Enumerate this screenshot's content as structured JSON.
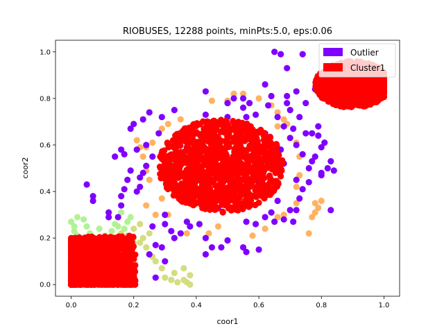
{
  "chart_data": {
    "type": "scatter",
    "title": "RIOBUSES, 12288 points, minPts:5.0, eps:0.06",
    "xlabel": "coor1",
    "ylabel": "coor2",
    "xlim": [
      -0.05,
      1.05
    ],
    "ylim": [
      -0.05,
      1.05
    ],
    "x_ticks": [
      0.0,
      0.2,
      0.4,
      0.6,
      0.8,
      1.0
    ],
    "x_tick_labels": [
      "0.0",
      "0.2",
      "0.4",
      "0.6",
      "0.8",
      "1.0"
    ],
    "y_ticks": [
      0.0,
      0.2,
      0.4,
      0.6,
      0.8,
      1.0
    ],
    "y_tick_labels": [
      "0.0",
      "0.2",
      "0.4",
      "0.6",
      "0.8",
      "1.0"
    ],
    "grid": false,
    "legend_position": "top-right",
    "legend": [
      {
        "label": "Outlier",
        "color": "#7f00ff"
      },
      {
        "label": "Cluster1",
        "color": "#ff0000"
      }
    ],
    "colors": {
      "outlier": "#7f00ff",
      "cluster1": "#ff0000",
      "cluster_orange": "#ffb360",
      "cluster_yellowgreen": "#d4dd80",
      "cluster_green": "#b2f296"
    },
    "series": [
      {
        "name": "Cluster1",
        "color": "#ff0000",
        "regions": [
          {
            "cx": 0.08,
            "cy": 0.09,
            "rx": 0.09,
            "ry": 0.1,
            "shape": "box",
            "density": "dense"
          },
          {
            "cx": 0.48,
            "cy": 0.51,
            "rx": 0.2,
            "ry": 0.2,
            "shape": "disc",
            "density": "dense"
          },
          {
            "cx": 0.9,
            "cy": 0.86,
            "rx": 0.12,
            "ry": 0.1,
            "shape": "disc",
            "density": "dense"
          }
        ]
      },
      {
        "name": "Outlier",
        "color": "#7f00ff",
        "points": [
          [
            0.65,
            1.0
          ],
          [
            0.67,
            0.99
          ],
          [
            0.62,
            0.86
          ],
          [
            0.64,
            0.81
          ],
          [
            0.43,
            0.83
          ],
          [
            0.33,
            0.75
          ],
          [
            0.29,
            0.72
          ],
          [
            0.25,
            0.74
          ],
          [
            0.23,
            0.71
          ],
          [
            0.2,
            0.69
          ],
          [
            0.28,
            0.65
          ],
          [
            0.19,
            0.67
          ],
          [
            0.17,
            0.56
          ],
          [
            0.16,
            0.58
          ],
          [
            0.14,
            0.55
          ],
          [
            0.18,
            0.45
          ],
          [
            0.17,
            0.41
          ],
          [
            0.16,
            0.38
          ],
          [
            0.21,
            0.4
          ],
          [
            0.16,
            0.34
          ],
          [
            0.07,
            0.38
          ],
          [
            0.07,
            0.36
          ],
          [
            0.05,
            0.43
          ],
          [
            0.12,
            0.31
          ],
          [
            0.12,
            0.29
          ],
          [
            0.15,
            0.29
          ],
          [
            0.27,
            0.17
          ],
          [
            0.25,
            0.13
          ],
          [
            0.3,
            0.1
          ],
          [
            0.27,
            0.03
          ],
          [
            0.32,
            0.23
          ],
          [
            0.29,
            0.16
          ],
          [
            0.33,
            0.2
          ],
          [
            0.3,
            0.3
          ],
          [
            0.43,
            0.2
          ],
          [
            0.45,
            0.16
          ],
          [
            0.43,
            0.13
          ],
          [
            0.48,
            0.16
          ],
          [
            0.5,
            0.19
          ],
          [
            0.55,
            0.16
          ],
          [
            0.56,
            0.14
          ],
          [
            0.6,
            0.15
          ],
          [
            0.59,
            0.26
          ],
          [
            0.62,
            0.29
          ],
          [
            0.64,
            0.31
          ],
          [
            0.68,
            0.28
          ],
          [
            0.71,
            0.27
          ],
          [
            0.72,
            0.32
          ],
          [
            0.73,
            0.37
          ],
          [
            0.74,
            0.41
          ],
          [
            0.8,
            0.47
          ],
          [
            0.8,
            0.48
          ],
          [
            0.82,
            0.5
          ],
          [
            0.83,
            0.53
          ],
          [
            0.84,
            0.49
          ],
          [
            0.77,
            0.53
          ],
          [
            0.74,
            0.56
          ],
          [
            0.72,
            0.6
          ],
          [
            0.7,
            0.63
          ],
          [
            0.71,
            0.67
          ],
          [
            0.73,
            0.72
          ],
          [
            0.7,
            0.75
          ],
          [
            0.69,
            0.78
          ],
          [
            0.63,
            0.77
          ],
          [
            0.59,
            0.73
          ],
          [
            0.56,
            0.72
          ],
          [
            0.55,
            0.76
          ],
          [
            0.57,
            0.78
          ],
          [
            0.52,
            0.8
          ],
          [
            0.5,
            0.78
          ],
          [
            0.55,
            0.8
          ],
          [
            0.77,
            0.65
          ],
          [
            0.75,
            0.65
          ],
          [
            0.79,
            0.64
          ],
          [
            0.81,
            0.61
          ],
          [
            0.83,
            0.32
          ],
          [
            0.69,
            0.81
          ],
          [
            0.72,
            0.83
          ],
          [
            0.75,
            0.78
          ],
          [
            0.78,
            0.84
          ],
          [
            0.74,
            0.99
          ],
          [
            0.69,
            0.93
          ],
          [
            0.37,
            0.59
          ],
          [
            0.38,
            0.54
          ],
          [
            0.4,
            0.65
          ],
          [
            0.26,
            0.55
          ],
          [
            0.24,
            0.51
          ],
          [
            0.24,
            0.6
          ],
          [
            0.21,
            0.58
          ],
          [
            0.34,
            0.63
          ],
          [
            0.19,
            0.49
          ],
          [
            0.22,
            0.46
          ],
          [
            0.23,
            0.48
          ],
          [
            0.22,
            0.42
          ],
          [
            0.37,
            0.27
          ],
          [
            0.38,
            0.25
          ],
          [
            0.41,
            0.26
          ],
          [
            0.35,
            0.22
          ],
          [
            0.3,
            0.26
          ],
          [
            0.26,
            0.25
          ],
          [
            0.56,
            0.27
          ],
          [
            0.65,
            0.27
          ],
          [
            0.7,
            0.32
          ],
          [
            0.66,
            0.36
          ],
          [
            0.72,
            0.45
          ],
          [
            0.76,
            0.44
          ],
          [
            0.76,
            0.5
          ],
          [
            0.78,
            0.55
          ],
          [
            0.8,
            0.59
          ],
          [
            0.79,
            0.68
          ],
          [
            0.68,
            0.68
          ],
          [
            0.35,
            0.56
          ],
          [
            0.46,
            0.69
          ],
          [
            0.5,
            0.72
          ],
          [
            0.43,
            0.73
          ],
          [
            0.47,
            0.33
          ],
          [
            0.39,
            0.36
          ],
          [
            0.36,
            0.4
          ],
          [
            0.57,
            0.34
          ],
          [
            0.61,
            0.39
          ],
          [
            0.6,
            0.43
          ],
          [
            0.68,
            0.52
          ],
          [
            0.67,
            0.58
          ],
          [
            0.62,
            0.65
          ],
          [
            0.66,
            0.72
          ]
        ]
      },
      {
        "name": "",
        "color": "#ffb360",
        "points": [
          [
            0.24,
            0.34
          ],
          [
            0.27,
            0.3
          ],
          [
            0.31,
            0.3
          ],
          [
            0.29,
            0.37
          ],
          [
            0.25,
            0.45
          ],
          [
            0.24,
            0.49
          ],
          [
            0.23,
            0.55
          ],
          [
            0.24,
            0.59
          ],
          [
            0.26,
            0.61
          ],
          [
            0.29,
            0.67
          ],
          [
            0.31,
            0.69
          ],
          [
            0.35,
            0.71
          ],
          [
            0.45,
            0.79
          ],
          [
            0.5,
            0.79
          ],
          [
            0.52,
            0.82
          ],
          [
            0.55,
            0.82
          ],
          [
            0.6,
            0.8
          ],
          [
            0.64,
            0.77
          ],
          [
            0.66,
            0.74
          ],
          [
            0.68,
            0.71
          ],
          [
            0.69,
            0.69
          ],
          [
            0.66,
            0.68
          ],
          [
            0.72,
            0.61
          ],
          [
            0.73,
            0.55
          ],
          [
            0.73,
            0.47
          ],
          [
            0.72,
            0.42
          ],
          [
            0.72,
            0.35
          ],
          [
            0.7,
            0.32
          ],
          [
            0.68,
            0.3
          ],
          [
            0.66,
            0.29
          ],
          [
            0.62,
            0.24
          ],
          [
            0.58,
            0.21
          ],
          [
            0.78,
            0.31
          ],
          [
            0.79,
            0.33
          ],
          [
            0.78,
            0.35
          ],
          [
            0.77,
            0.29
          ],
          [
            0.76,
            0.22
          ],
          [
            0.8,
            0.36
          ],
          [
            0.22,
            0.59
          ],
          [
            0.21,
            0.62
          ],
          [
            0.37,
            0.22
          ],
          [
            0.44,
            0.22
          ],
          [
            0.47,
            0.25
          ],
          [
            0.31,
            0.54
          ]
        ]
      },
      {
        "name": "",
        "color": "#d4dd80",
        "points": [
          [
            0.23,
            0.2
          ],
          [
            0.22,
            0.18
          ],
          [
            0.2,
            0.18
          ],
          [
            0.24,
            0.16
          ],
          [
            0.26,
            0.12
          ],
          [
            0.27,
            0.1
          ],
          [
            0.29,
            0.07
          ],
          [
            0.3,
            0.03
          ],
          [
            0.34,
            0.01
          ],
          [
            0.36,
            0.02
          ],
          [
            0.37,
            0.01
          ],
          [
            0.38,
            0.0
          ],
          [
            0.36,
            0.07
          ],
          [
            0.38,
            0.04
          ],
          [
            0.18,
            0.21
          ],
          [
            0.16,
            0.22
          ],
          [
            0.2,
            0.24
          ],
          [
            0.22,
            0.26
          ],
          [
            0.25,
            0.22
          ],
          [
            0.33,
            0.05
          ],
          [
            0.32,
            0.02
          ]
        ]
      },
      {
        "name": "",
        "color": "#b2f296",
        "points": [
          [
            0.0,
            0.27
          ],
          [
            0.02,
            0.29
          ],
          [
            0.04,
            0.28
          ],
          [
            0.05,
            0.25
          ],
          [
            0.06,
            0.22
          ],
          [
            0.09,
            0.24
          ],
          [
            0.11,
            0.21
          ],
          [
            0.13,
            0.23
          ],
          [
            0.15,
            0.25
          ],
          [
            0.17,
            0.24
          ],
          [
            0.18,
            0.27
          ],
          [
            0.19,
            0.29
          ],
          [
            0.16,
            0.31
          ],
          [
            0.01,
            0.23
          ],
          [
            0.02,
            0.21
          ],
          [
            0.14,
            0.26
          ],
          [
            0.2,
            0.2
          ],
          [
            0.01,
            0.25
          ]
        ]
      }
    ]
  }
}
